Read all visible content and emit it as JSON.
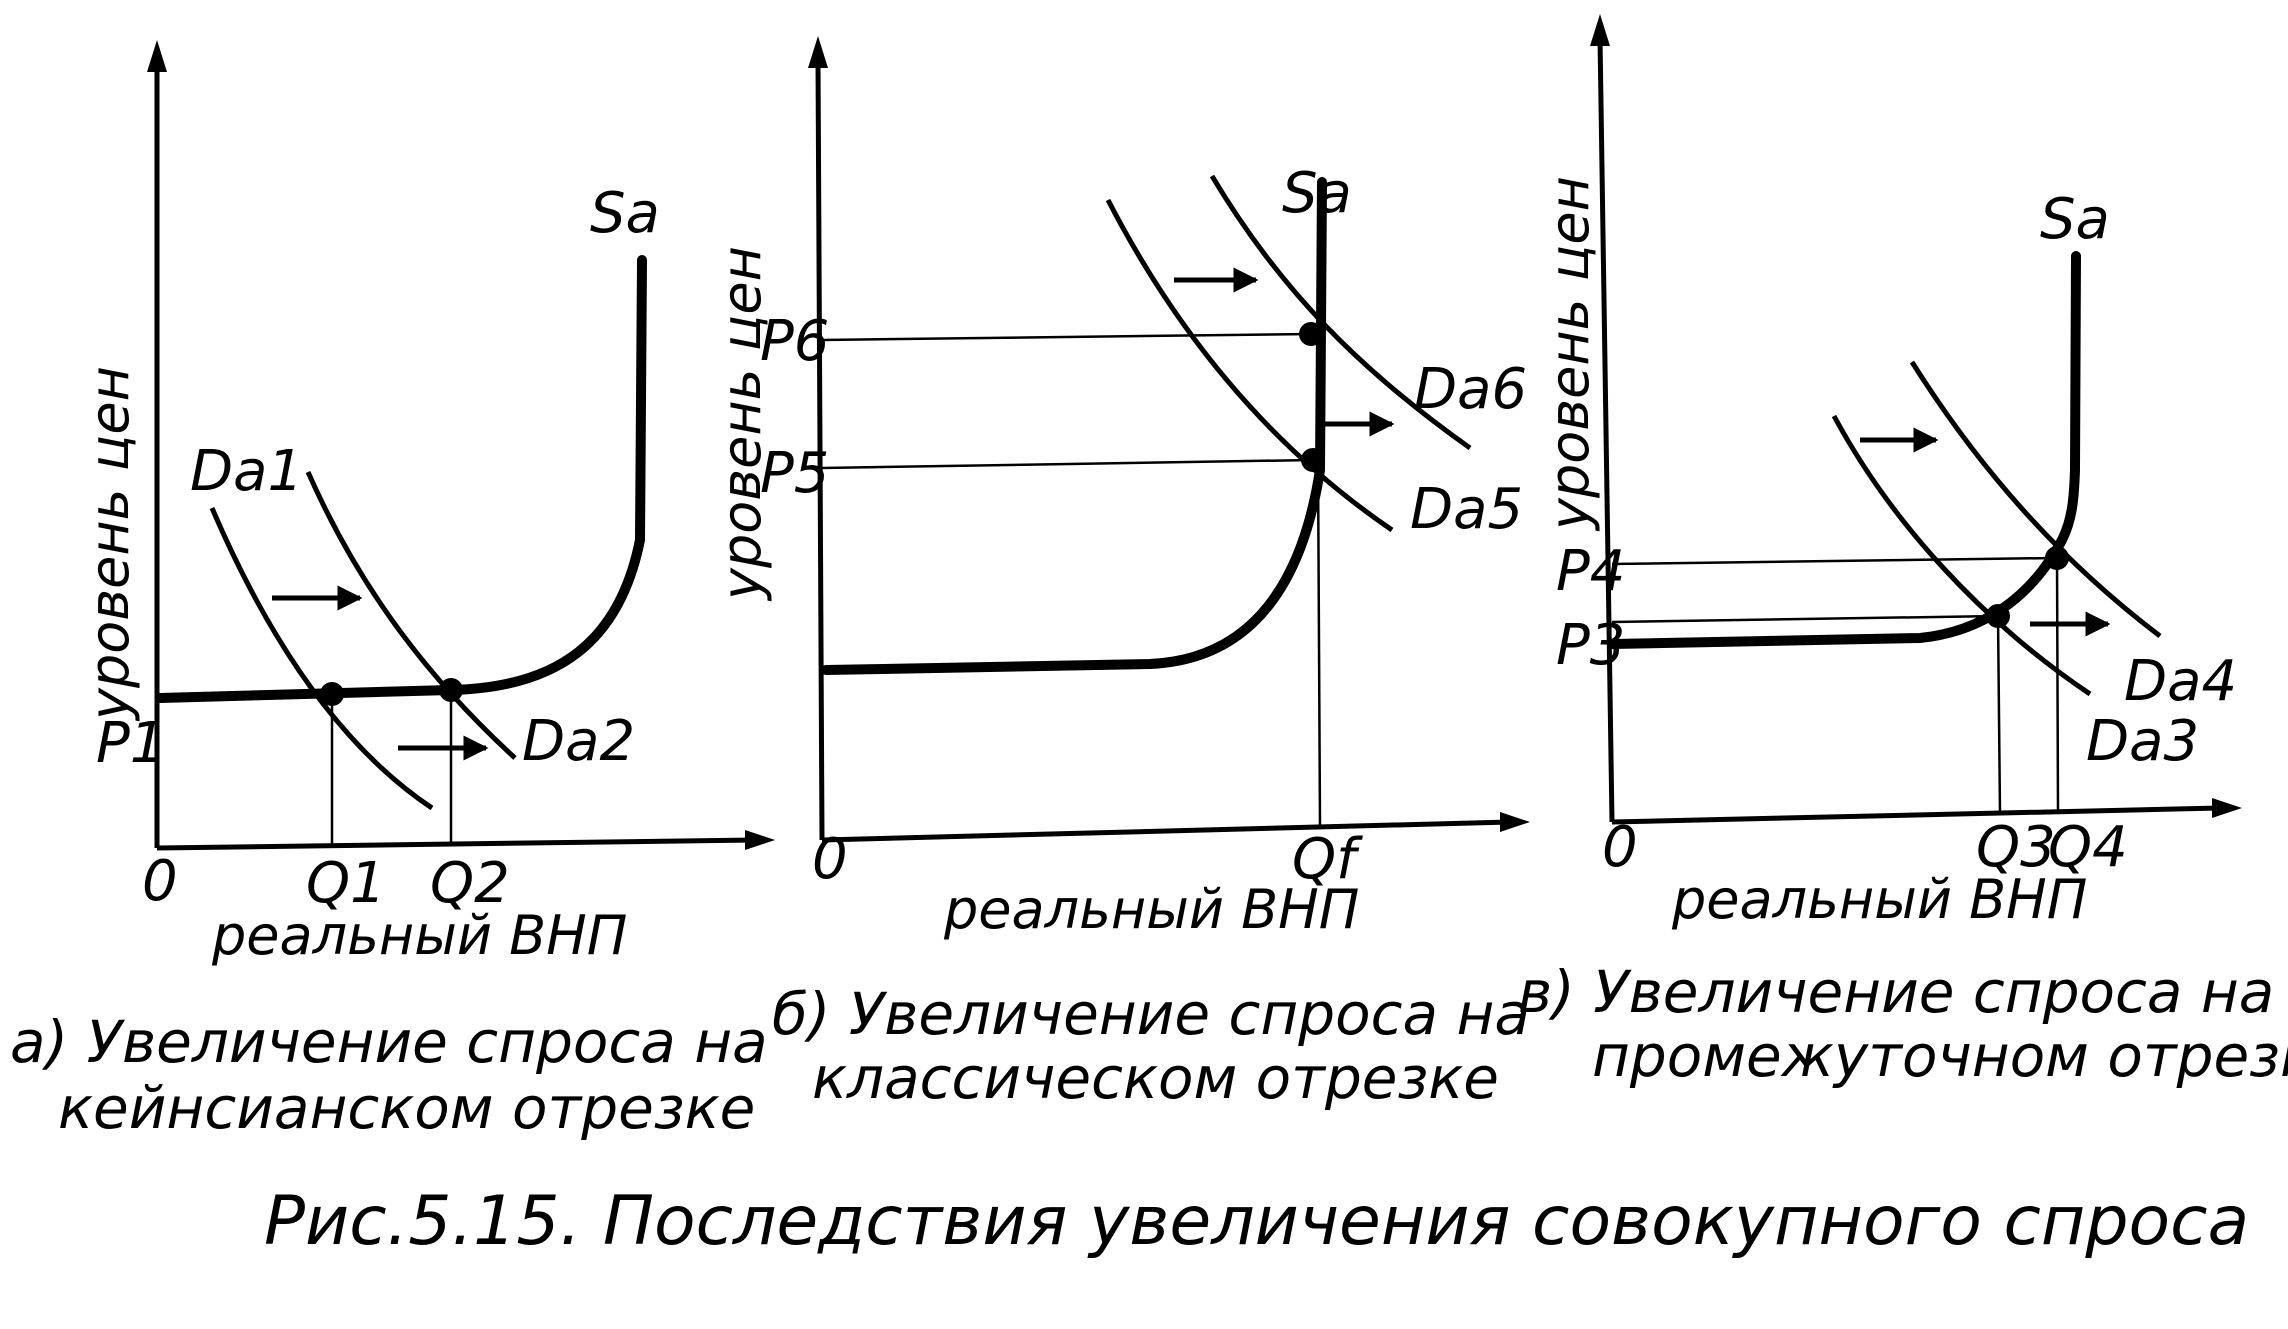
{
  "figure_title": "Рис.5.15. Последствия увеличения совокупного спроса",
  "panels": [
    {
      "id": "a",
      "ylabel": "уровень цен",
      "xlabel": "реальный ВНП",
      "origin": "0",
      "supply_label": "Sa",
      "demand_labels": [
        "Da1",
        "Da2"
      ],
      "price_labels": [
        "P1"
      ],
      "quantity_labels": [
        "Q1",
        "Q2"
      ],
      "caption_line1": "а) Увеличение спроса на",
      "caption_line2": "кейнсианском отрезке"
    },
    {
      "id": "b",
      "ylabel": "уровень цен",
      "xlabel": "реальный ВНП",
      "origin": "0",
      "supply_label": "Sa",
      "demand_labels": [
        "Da5",
        "Da6"
      ],
      "price_labels": [
        "P5",
        "P6"
      ],
      "quantity_labels": [
        "Qf"
      ],
      "caption_line1": "б) Увеличение спроса на",
      "caption_line2": "классическом отрезке"
    },
    {
      "id": "c",
      "ylabel": "уровень цен",
      "xlabel": "реальный ВНП",
      "origin": "0",
      "supply_label": "Sa",
      "demand_labels": [
        "Da3",
        "Da4"
      ],
      "price_labels": [
        "P3",
        "P4"
      ],
      "quantity_labels": [
        "Q3",
        "Q4"
      ],
      "caption_line1": "в) Увеличение спроса на",
      "caption_line2": "промежуточном отрезке"
    }
  ]
}
